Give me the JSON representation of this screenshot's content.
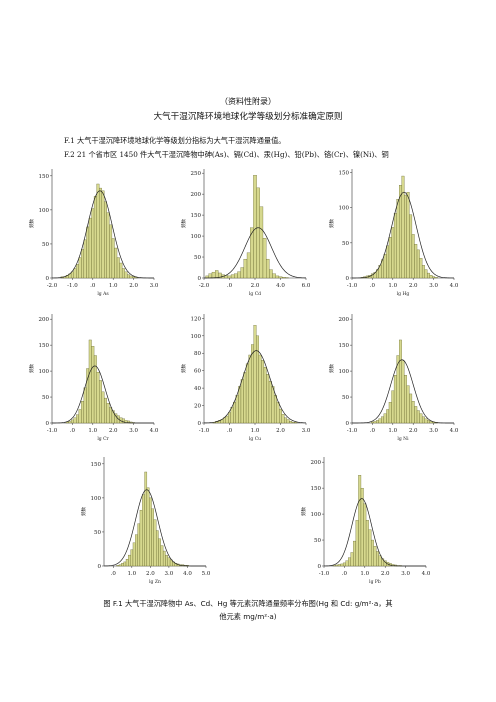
{
  "header": {
    "appendix_note": "（资料性附录）",
    "title": "大气干湿沉降环境地球化学等级划分标准确定原则"
  },
  "body": {
    "para_f1": "F.1    大气干湿沉降环境地球化学等级划分指标为大气干湿沉降通量值。",
    "para_f2": "F.2    21 个省市区 1450 件大气干湿沉降物中砷(As)、镉(Cd)、汞(Hg)、铅(Pb)、铬(Cr)、镍(Ni)、铜"
  },
  "figure": {
    "caption_line1": "图 F.1  大气干湿沉降物中 As、Cd、Hg 等元素沉降通量频率分布图(Hg 和 Cd: g/m²·a，其",
    "caption_line2": "他元素 mg/m²·a)"
  },
  "colors": {
    "bar_fill": "#d6d88e",
    "bar_stroke": "#55561c",
    "curve": "#222222"
  },
  "chart_data": [
    {
      "type": "bar",
      "subtype": "histogram_with_normal_curve",
      "xlabel": "lg As",
      "ylabel": "频数",
      "xlim": [
        -2.0,
        3.0
      ],
      "ylim": [
        0,
        160
      ],
      "xticks": [
        "-2.0",
        "-1.0",
        ".0",
        "1.0",
        "2.0",
        "3.0"
      ],
      "yticks": [
        "0",
        "50",
        "100",
        "150"
      ],
      "bin_width": 0.125,
      "x": [
        -1.5,
        -1.375,
        -1.25,
        -1.125,
        -1.0,
        -0.875,
        -0.75,
        -0.625,
        -0.5,
        -0.375,
        -0.25,
        -0.125,
        0.0,
        0.125,
        0.25,
        0.375,
        0.5,
        0.625,
        0.75,
        0.875,
        1.0,
        1.125,
        1.25,
        1.375,
        1.5,
        1.625,
        1.75,
        1.875,
        2.0,
        2.125
      ],
      "values": [
        2,
        2,
        4,
        6,
        9,
        14,
        20,
        30,
        42,
        56,
        75,
        88,
        102,
        120,
        138,
        132,
        128,
        112,
        96,
        78,
        58,
        44,
        30,
        22,
        14,
        9,
        5,
        3,
        2,
        1
      ],
      "normal_curve": {
        "mean": 0.35,
        "sd": 0.6,
        "peak": 128
      }
    },
    {
      "type": "bar",
      "subtype": "histogram_with_normal_curve",
      "xlabel": "lg Cd",
      "ylabel": "频数",
      "xlim": [
        -2.0,
        6.0
      ],
      "ylim": [
        0,
        260
      ],
      "xticks": [
        "-2.0",
        ".0",
        "2.0",
        "4.0",
        "6.0"
      ],
      "yticks": [
        "0",
        "50",
        "100",
        "150",
        "200",
        "250"
      ],
      "bin_width": 0.25,
      "x": [
        -1.75,
        -1.5,
        -1.25,
        -1.0,
        -0.75,
        -0.5,
        -0.25,
        0.0,
        0.25,
        0.5,
        0.75,
        1.0,
        1.25,
        1.5,
        1.75,
        2.0,
        2.25,
        2.5,
        2.75,
        3.0,
        3.25,
        3.5,
        3.75,
        4.0,
        4.25,
        4.5
      ],
      "values": [
        5,
        10,
        14,
        18,
        12,
        8,
        6,
        5,
        8,
        10,
        15,
        25,
        45,
        60,
        120,
        245,
        215,
        170,
        95,
        45,
        20,
        10,
        5,
        3,
        2,
        1
      ],
      "normal_curve": {
        "mean": 2.25,
        "sd": 1.05,
        "peak": 120
      }
    },
    {
      "type": "bar",
      "subtype": "histogram_with_normal_curve",
      "xlabel": "lg Hg",
      "ylabel": "频数",
      "xlim": [
        -1.0,
        4.0
      ],
      "ylim": [
        0,
        155
      ],
      "xticks": [
        "-1.0",
        ".0",
        "1.0",
        "2.0",
        "3.0",
        "4.0"
      ],
      "yticks": [
        "0",
        "50",
        "100",
        "150"
      ],
      "bin_width": 0.125,
      "x": [
        -0.5,
        -0.375,
        -0.25,
        -0.125,
        0.0,
        0.125,
        0.25,
        0.375,
        0.5,
        0.625,
        0.75,
        0.875,
        1.0,
        1.125,
        1.25,
        1.375,
        1.5,
        1.625,
        1.75,
        1.875,
        2.0,
        2.125,
        2.25,
        2.375,
        2.5,
        2.625,
        2.75,
        2.875,
        3.0,
        3.125
      ],
      "values": [
        1,
        2,
        3,
        4,
        6,
        8,
        12,
        18,
        26,
        34,
        46,
        58,
        72,
        92,
        112,
        132,
        145,
        118,
        122,
        90,
        62,
        48,
        40,
        28,
        18,
        12,
        7,
        4,
        2,
        1
      ],
      "normal_curve": {
        "mean": 1.55,
        "sd": 0.6,
        "peak": 122
      }
    },
    {
      "type": "bar",
      "subtype": "histogram_with_normal_curve",
      "xlabel": "lg Cr",
      "ylabel": "频数",
      "xlim": [
        -1.0,
        4.0
      ],
      "ylim": [
        0,
        210
      ],
      "xticks": [
        "-1.0",
        ".0",
        "1.0",
        "2.0",
        "3.0",
        "4.0"
      ],
      "yticks": [
        "0",
        "50",
        "100",
        "150",
        "200"
      ],
      "bin_width": 0.125,
      "x": [
        -0.25,
        -0.125,
        0.0,
        0.125,
        0.25,
        0.375,
        0.5,
        0.625,
        0.75,
        0.875,
        1.0,
        1.125,
        1.25,
        1.375,
        1.5,
        1.625,
        1.75,
        1.875,
        2.0,
        2.125,
        2.25,
        2.375,
        2.5,
        2.625,
        2.75,
        2.875,
        3.0
      ],
      "values": [
        2,
        3,
        6,
        10,
        16,
        26,
        42,
        68,
        105,
        160,
        148,
        130,
        98,
        82,
        60,
        48,
        38,
        30,
        24,
        18,
        14,
        10,
        8,
        5,
        4,
        2,
        1
      ],
      "normal_curve": {
        "mean": 1.1,
        "sd": 0.5,
        "peak": 110
      }
    },
    {
      "type": "bar",
      "subtype": "histogram_with_normal_curve",
      "xlabel": "lg Cu",
      "ylabel": "频数",
      "xlim": [
        -1.0,
        3.0
      ],
      "ylim": [
        0,
        125
      ],
      "xticks": [
        "-1.0",
        ".0",
        "1.0",
        "2.0",
        "3.0"
      ],
      "yticks": [
        "0",
        "20",
        "40",
        "60",
        "80",
        "100",
        "120"
      ],
      "bin_width": 0.1,
      "x": [
        -0.6,
        -0.5,
        -0.4,
        -0.3,
        -0.2,
        -0.1,
        0.0,
        0.1,
        0.2,
        0.3,
        0.4,
        0.5,
        0.6,
        0.7,
        0.8,
        0.9,
        1.0,
        1.1,
        1.2,
        1.3,
        1.4,
        1.5,
        1.6,
        1.7,
        1.8,
        1.9,
        2.0,
        2.1,
        2.2,
        2.3,
        2.4,
        2.5,
        2.6
      ],
      "values": [
        1,
        2,
        3,
        4,
        6,
        8,
        12,
        18,
        24,
        32,
        42,
        50,
        58,
        68,
        78,
        90,
        112,
        100,
        78,
        72,
        64,
        56,
        48,
        42,
        32,
        24,
        16,
        10,
        6,
        4,
        2,
        1,
        1
      ],
      "normal_curve": {
        "mean": 1.05,
        "sd": 0.55,
        "peak": 83
      }
    },
    {
      "type": "bar",
      "subtype": "histogram_with_normal_curve",
      "xlabel": "lg Ni",
      "ylabel": "频数",
      "xlim": [
        -1.0,
        4.0
      ],
      "ylim": [
        0,
        210
      ],
      "xticks": [
        "-1.0",
        ".0",
        "1.0",
        "2.0",
        "3.0",
        "4.0"
      ],
      "yticks": [
        "0",
        "50",
        "100",
        "150",
        "200"
      ],
      "bin_width": 0.125,
      "x": [
        0.0,
        0.125,
        0.25,
        0.375,
        0.5,
        0.625,
        0.75,
        0.875,
        1.0,
        1.125,
        1.25,
        1.375,
        1.5,
        1.625,
        1.75,
        1.875,
        2.0,
        2.125,
        2.25,
        2.375,
        2.5,
        2.625,
        2.75,
        2.875,
        3.0,
        3.125
      ],
      "values": [
        2,
        3,
        5,
        8,
        12,
        18,
        26,
        40,
        62,
        92,
        130,
        160,
        120,
        92,
        72,
        56,
        42,
        32,
        24,
        18,
        12,
        8,
        5,
        3,
        2,
        1
      ],
      "normal_curve": {
        "mean": 1.45,
        "sd": 0.55,
        "peak": 122
      }
    },
    {
      "type": "bar",
      "subtype": "histogram_with_normal_curve",
      "xlabel": "lg Zn",
      "ylabel": "频数",
      "xlim": [
        -0.5,
        5.0
      ],
      "ylim": [
        0,
        160
      ],
      "xticks": [
        ".0",
        "1.0",
        "2.0",
        "3.0",
        "4.0",
        "5.0"
      ],
      "yticks": [
        "0",
        "50",
        "100",
        "150"
      ],
      "bin_width": 0.125,
      "x": [
        0.25,
        0.375,
        0.5,
        0.625,
        0.75,
        0.875,
        1.0,
        1.125,
        1.25,
        1.375,
        1.5,
        1.625,
        1.75,
        1.875,
        2.0,
        2.125,
        2.25,
        2.375,
        2.5,
        2.625,
        2.75,
        2.875,
        3.0,
        3.125,
        3.25,
        3.375,
        3.5,
        3.625,
        3.75,
        3.875,
        4.0
      ],
      "values": [
        1,
        2,
        4,
        6,
        10,
        16,
        24,
        34,
        46,
        62,
        82,
        105,
        138,
        115,
        100,
        84,
        68,
        52,
        40,
        30,
        22,
        16,
        12,
        9,
        6,
        4,
        3,
        2,
        2,
        1,
        1
      ],
      "normal_curve": {
        "mean": 1.8,
        "sd": 0.6,
        "peak": 112
      }
    },
    {
      "type": "bar",
      "subtype": "histogram_with_normal_curve",
      "xlabel": "lg Pb",
      "ylabel": "频数",
      "xlim": [
        -1.0,
        4.0
      ],
      "ylim": [
        0,
        210
      ],
      "xticks": [
        "-1.0",
        ".0",
        "1.0",
        "2.0",
        "3.0",
        "4.0"
      ],
      "yticks": [
        "0",
        "50",
        "100",
        "150",
        "200"
      ],
      "bin_width": 0.125,
      "x": [
        -0.5,
        -0.375,
        -0.25,
        -0.125,
        0.0,
        0.125,
        0.25,
        0.375,
        0.5,
        0.625,
        0.75,
        0.875,
        1.0,
        1.125,
        1.25,
        1.375,
        1.5,
        1.625,
        1.75,
        1.875,
        2.0,
        2.125,
        2.25,
        2.375,
        2.5,
        2.625,
        2.75
      ],
      "values": [
        1,
        2,
        3,
        4,
        6,
        10,
        16,
        26,
        48,
        88,
        175,
        150,
        120,
        88,
        70,
        50,
        38,
        28,
        20,
        14,
        10,
        7,
        5,
        3,
        2,
        1,
        1
      ],
      "normal_curve": {
        "mean": 0.85,
        "sd": 0.48,
        "peak": 130
      }
    }
  ]
}
